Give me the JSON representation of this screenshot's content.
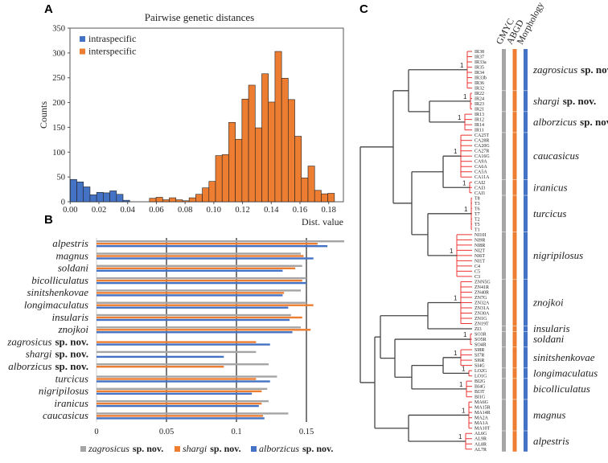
{
  "panels": {
    "a": "A",
    "b": "B",
    "c": "C"
  },
  "chart_data": [
    {
      "type": "bar",
      "title": "Pairwise genetic distances",
      "xlabel": "Dist. value",
      "ylabel": "Counts",
      "xlim": [
        0,
        0.19
      ],
      "ylim": [
        0,
        350
      ],
      "bin_width": 0.0046,
      "xticks": [
        "0.00",
        "0.02",
        "0.04",
        "0.06",
        "0.08",
        "0.10",
        "0.12",
        "0.14",
        "0.16",
        "0.18"
      ],
      "yticks": [
        "0",
        "50",
        "100",
        "150",
        "200",
        "250",
        "300",
        "350"
      ],
      "legend_position": "top-left",
      "series": [
        {
          "name": "intraspecific",
          "color": "#4472C4",
          "counts": [
            45,
            40,
            30,
            14,
            19,
            18,
            22,
            15,
            3,
            0,
            0,
            0,
            0,
            0,
            0,
            0,
            0,
            0,
            0,
            0,
            0,
            0,
            0,
            0,
            0,
            0,
            0,
            0,
            0,
            0,
            0,
            0,
            0,
            0,
            0,
            0,
            0,
            0,
            0,
            0
          ]
        },
        {
          "name": "interspecific",
          "color": "#ED7D31",
          "counts": [
            0,
            0,
            0,
            0,
            0,
            0,
            0,
            0,
            0,
            0,
            0,
            0,
            7,
            9,
            4,
            8,
            4,
            2,
            8,
            15,
            28,
            41,
            93,
            95,
            160,
            126,
            207,
            235,
            149,
            258,
            201,
            303,
            249,
            206,
            132,
            48,
            72,
            23,
            16,
            17
          ]
        }
      ]
    },
    {
      "type": "bar",
      "orientation": "horizontal",
      "xlim": [
        0,
        0.18
      ],
      "xticks": [
        "0",
        "0.05",
        "0.1",
        "0.15"
      ],
      "gridlines": [
        0.05,
        0.1,
        0.15
      ],
      "legend_position": "bottom",
      "categories": [
        {
          "name": "alpestris",
          "suffix": ""
        },
        {
          "name": "magnus",
          "suffix": ""
        },
        {
          "name": "soldani",
          "suffix": ""
        },
        {
          "name": "bicolliculatus",
          "suffix": ""
        },
        {
          "name": "sinitshenkovae",
          "suffix": ""
        },
        {
          "name": "longimaculatus",
          "suffix": ""
        },
        {
          "name": "insularis",
          "suffix": ""
        },
        {
          "name": "znojkoi",
          "suffix": ""
        },
        {
          "name": "zagrosicus",
          "suffix": "sp. nov."
        },
        {
          "name": "shargi",
          "suffix": "sp. nov."
        },
        {
          "name": "alborzicus",
          "suffix": "sp. nov."
        },
        {
          "name": "turcicus",
          "suffix": ""
        },
        {
          "name": "nigripilosus",
          "suffix": ""
        },
        {
          "name": "iranicus",
          "suffix": ""
        },
        {
          "name": "caucasicus",
          "suffix": ""
        }
      ],
      "series": [
        {
          "name": "zagrosicus",
          "suffix": "sp. nov.",
          "color": "#A5A5A5",
          "values": [
            0.177,
            0.146,
            0.147,
            0.15,
            0.146,
            0.15,
            0.139,
            0.146,
            null,
            0.114,
            0.123,
            0.129,
            0.122,
            0.123,
            0.137
          ]
        },
        {
          "name": "shargi",
          "suffix": "sp. nov.",
          "color": "#ED7D31",
          "values": [
            0.158,
            0.148,
            0.142,
            0.147,
            0.134,
            0.155,
            0.147,
            0.153,
            0.114,
            null,
            0.091,
            0.114,
            0.118,
            0.118,
            0.119
          ]
        },
        {
          "name": "alborzicus",
          "suffix": "sp. nov.",
          "color": "#4472C4",
          "values": [
            0.165,
            0.155,
            0.133,
            0.15,
            0.133,
            0.137,
            0.138,
            0.14,
            0.124,
            0.091,
            null,
            0.124,
            0.111,
            0.116,
            0.12
          ]
        }
      ]
    }
  ],
  "tree": {
    "headers": [
      "GMYC",
      "ABGD",
      "Morphology"
    ],
    "header_colors": [
      "#A5A5A5",
      "#ED7D31",
      "#4472C4"
    ],
    "support_label": "1",
    "clades": [
      {
        "name": "zagrosicus",
        "suffix": "sp. nov.",
        "support": "1",
        "tips": [
          "IR38",
          "IR37",
          "IR33a",
          "IR35",
          "IR34",
          "IR33b",
          "IR36",
          "IR32"
        ]
      },
      {
        "name": "shargi",
        "suffix": "sp. nov.",
        "support": "1",
        "tips": [
          "IR22",
          "IR24",
          "IR23",
          "IR21"
        ]
      },
      {
        "name": "alborzicus",
        "suffix": "sp. nov.",
        "support": "1",
        "tips": [
          "IR13",
          "IR12",
          "IR14",
          "IR11"
        ]
      },
      {
        "name": "caucasicus",
        "suffix": "",
        "support": "1",
        "tips": [
          "CA25T",
          "CA28R",
          "CA20G",
          "CA27R",
          "CA16G",
          "CA9A",
          "CA6A",
          "CA5A",
          "CA11A"
        ]
      },
      {
        "name": "iranicus",
        "suffix": "",
        "support": "1",
        "tips": [
          "CAI2",
          "CAI3",
          "CAI1"
        ]
      },
      {
        "name": "turcicus",
        "suffix": "",
        "support": "1",
        "tips": [
          "T8",
          "T3",
          "T6",
          "T7",
          "T2",
          "T5",
          "T1"
        ]
      },
      {
        "name": "nigripilosus",
        "suffix": "",
        "support": "1",
        "tips": [
          "NI10I",
          "NI9R",
          "NI8R",
          "NI2T",
          "NI6T",
          "NI1T",
          "C4",
          "C5",
          "C3"
        ]
      },
      {
        "name": "znojkoi",
        "suffix": "",
        "support": "1",
        "tips": [
          "ZNN5G",
          "ZN41R",
          "ZN40R",
          "ZN7G",
          "ZN32A",
          "ZN31A",
          "ZN30A",
          "ZN1G",
          "ZN19T"
        ]
      },
      {
        "name": "insularis",
        "suffix": "",
        "support": "",
        "tips": [
          "ZI3"
        ]
      },
      {
        "name": "soldani",
        "suffix": "",
        "support": "1",
        "tips": [
          "SO3R",
          "SO5R",
          "SO4R"
        ]
      },
      {
        "name": "sinitshenkovae",
        "suffix": "",
        "support": "1",
        "tips": [
          "SI8R",
          "SI7R",
          "SI6R",
          "SI4G"
        ]
      },
      {
        "name": "longimaculatus",
        "suffix": "",
        "support": "1",
        "tips": [
          "LO2G",
          "LO1G"
        ]
      },
      {
        "name": "bicolliculatus",
        "suffix": "",
        "support": "1",
        "tips": [
          "BI2G",
          "BI4G",
          "BI3T",
          "BI1G"
        ]
      },
      {
        "name": "magnus",
        "suffix": "",
        "support": "1",
        "tips": [
          "MA6G",
          "MA15R",
          "MA14R",
          "MA2A",
          "MA1A",
          "MA10T"
        ]
      },
      {
        "name": "alpestris",
        "suffix": "",
        "support": "1",
        "tips": [
          "AL6G",
          "AL9R",
          "AL8R",
          "AL7R"
        ]
      }
    ]
  }
}
